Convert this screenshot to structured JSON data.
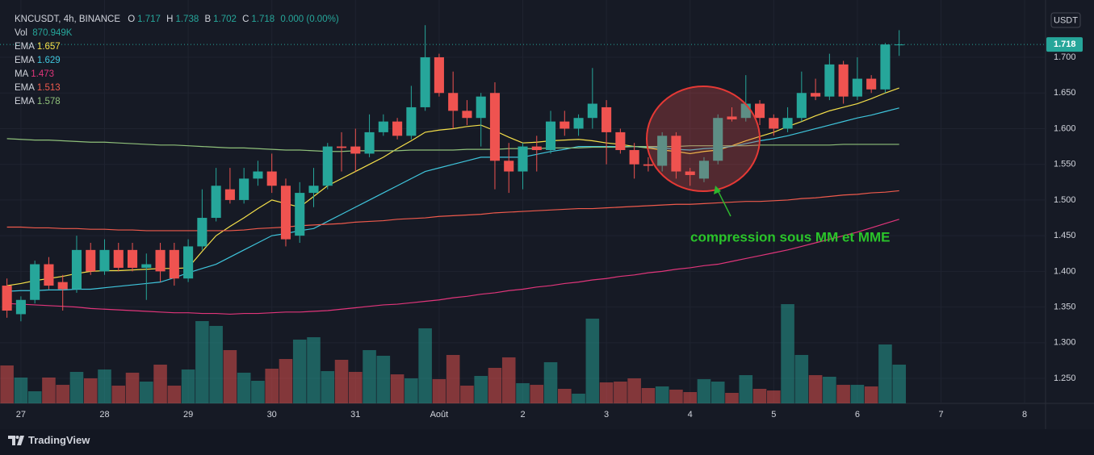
{
  "chart_data": {
    "type": "candlestick",
    "title": "KNCUSDT, 4h, BINANCE",
    "ohlc_keys": [
      "O",
      "H",
      "B",
      "C"
    ],
    "change": "0.000 (0.00%)",
    "volume_name": "Vol",
    "volume_text": "870.949K",
    "currency": "USDT",
    "annotation": "compression sous MM et MME",
    "up_color": "#26a69a",
    "down_color": "#ef5350",
    "grid": true,
    "ylim": [
      1.215,
      1.769
    ],
    "yticks": [
      {
        "value": 1.25,
        "label": "1.250"
      },
      {
        "value": 1.3,
        "label": "1.300"
      },
      {
        "value": 1.35,
        "label": "1.350"
      },
      {
        "value": 1.4,
        "label": "1.400"
      },
      {
        "value": 1.45,
        "label": "1.450"
      },
      {
        "value": 1.5,
        "label": "1.500"
      },
      {
        "value": 1.55,
        "label": "1.550"
      },
      {
        "value": 1.6,
        "label": "1.600"
      },
      {
        "value": 1.65,
        "label": "1.650"
      },
      {
        "value": 1.7,
        "label": "1.700"
      }
    ],
    "categories": [
      null,
      "27",
      null,
      null,
      null,
      null,
      null,
      "28",
      null,
      null,
      null,
      null,
      null,
      "29",
      null,
      null,
      null,
      null,
      null,
      "30",
      null,
      null,
      null,
      null,
      null,
      "31",
      null,
      null,
      null,
      null,
      null,
      "Août",
      null,
      null,
      null,
      null,
      null,
      "2",
      null,
      null,
      null,
      null,
      null,
      "3",
      null,
      null,
      null,
      null,
      null,
      "4",
      null,
      null,
      null,
      null,
      null,
      "5",
      null,
      null,
      null,
      null,
      null,
      "6",
      null,
      null,
      null,
      null,
      null,
      "7",
      null,
      null,
      null,
      null,
      null,
      "8",
      null
    ],
    "open": [
      1.38,
      1.34,
      1.36,
      1.41,
      1.385,
      1.375,
      1.43,
      1.4,
      1.43,
      1.43,
      1.405,
      1.43,
      1.43,
      1.39,
      1.435,
      1.475,
      1.515,
      1.5,
      1.53,
      1.54,
      1.52,
      1.45,
      1.51,
      1.52,
      1.575,
      1.575,
      1.565,
      1.595,
      1.61,
      1.59,
      1.63,
      1.7,
      1.65,
      1.625,
      1.615,
      1.65,
      1.555,
      1.54,
      1.575,
      1.57,
      1.61,
      1.6,
      1.615,
      1.63,
      1.595,
      1.57,
      1.55,
      1.548,
      1.59,
      1.54,
      1.53,
      1.555,
      1.617,
      1.615,
      1.635,
      1.615,
      1.6,
      1.615,
      1.65,
      1.645,
      1.69,
      1.645,
      1.67,
      1.655,
      1.717,
      null,
      null,
      null,
      null,
      null,
      null,
      null,
      null,
      null,
      null
    ],
    "high": [
      1.39,
      1.365,
      1.415,
      1.42,
      1.395,
      1.45,
      1.44,
      1.445,
      1.44,
      1.44,
      1.425,
      1.44,
      1.44,
      1.445,
      1.515,
      1.545,
      1.545,
      1.545,
      1.555,
      1.565,
      1.53,
      1.525,
      1.545,
      1.58,
      1.595,
      1.6,
      1.62,
      1.62,
      1.615,
      1.66,
      1.745,
      1.705,
      1.68,
      1.64,
      1.65,
      1.665,
      1.58,
      1.58,
      1.59,
      1.625,
      1.625,
      1.62,
      1.685,
      1.64,
      1.6,
      1.58,
      1.56,
      1.595,
      1.595,
      1.545,
      1.56,
      1.62,
      1.63,
      1.675,
      1.64,
      1.62,
      1.63,
      1.68,
      1.67,
      1.705,
      1.695,
      1.7,
      1.675,
      1.72,
      1.738,
      null,
      null,
      null,
      null,
      null,
      null,
      null,
      null,
      null,
      null
    ],
    "low": [
      1.335,
      1.33,
      1.355,
      1.375,
      1.345,
      1.37,
      1.395,
      1.395,
      1.4,
      1.4,
      1.36,
      1.385,
      1.38,
      1.385,
      1.43,
      1.47,
      1.495,
      1.495,
      1.52,
      1.51,
      1.435,
      1.44,
      1.49,
      1.515,
      1.54,
      1.54,
      1.56,
      1.59,
      1.585,
      1.585,
      1.625,
      1.645,
      1.6,
      1.605,
      1.575,
      1.515,
      1.51,
      1.515,
      1.54,
      1.565,
      1.59,
      1.59,
      1.6,
      1.55,
      1.565,
      1.53,
      1.54,
      1.54,
      1.53,
      1.52,
      1.525,
      1.55,
      1.61,
      1.61,
      1.605,
      1.59,
      1.595,
      1.61,
      1.64,
      1.64,
      1.635,
      1.64,
      1.65,
      1.65,
      1.702,
      null,
      null,
      null,
      null,
      null,
      null,
      null,
      null,
      null,
      null
    ],
    "close": [
      1.345,
      1.36,
      1.41,
      1.38,
      1.375,
      1.43,
      1.4,
      1.43,
      1.405,
      1.405,
      1.41,
      1.4,
      1.39,
      1.435,
      1.475,
      1.52,
      1.5,
      1.53,
      1.54,
      1.52,
      1.445,
      1.51,
      1.52,
      1.575,
      1.573,
      1.565,
      1.595,
      1.61,
      1.59,
      1.63,
      1.7,
      1.65,
      1.625,
      1.615,
      1.645,
      1.555,
      1.54,
      1.575,
      1.57,
      1.61,
      1.6,
      1.615,
      1.635,
      1.595,
      1.57,
      1.55,
      1.548,
      1.59,
      1.54,
      1.535,
      1.555,
      1.615,
      1.613,
      1.635,
      1.615,
      1.6,
      1.615,
      1.65,
      1.645,
      1.69,
      1.645,
      1.67,
      1.655,
      1.718,
      1.718,
      null,
      null,
      null,
      null,
      null,
      null,
      null,
      null,
      null,
      null
    ],
    "volume": [
      853,
      581,
      272,
      581,
      417,
      708,
      563,
      762,
      399,
      690,
      490,
      871,
      399,
      762,
      1851,
      1742,
      1198,
      690,
      508,
      780,
      998,
      1434,
      1488,
      726,
      980,
      708,
      1198,
      1071,
      653,
      563,
      1688,
      545,
      1089,
      399,
      617,
      799,
      1035,
      454,
      417,
      926,
      327,
      218,
      1906,
      472,
      490,
      563,
      345,
      381,
      309,
      254,
      545,
      490,
      236,
      635,
      327,
      290,
      2232,
      1089,
      635,
      599,
      417,
      417,
      381,
      1325,
      870.949,
      null,
      null,
      null,
      null,
      null,
      null,
      null,
      null,
      null,
      null
    ],
    "lines": [
      {
        "name": "EMA",
        "color": "#f5e04a",
        "values": [
          1.38,
          1.383,
          1.387,
          1.39,
          1.393,
          1.397,
          1.4,
          1.401,
          1.401,
          1.402,
          1.403,
          1.404,
          1.404,
          1.405,
          1.428,
          1.45,
          1.463,
          1.475,
          1.488,
          1.5,
          1.495,
          1.49,
          1.505,
          1.52,
          1.53,
          1.54,
          1.55,
          1.56,
          1.572,
          1.583,
          1.595,
          1.598,
          1.6,
          1.603,
          1.605,
          1.597,
          1.588,
          1.58,
          1.581,
          1.583,
          1.584,
          1.585,
          1.583,
          1.58,
          1.578,
          1.575,
          1.573,
          1.57,
          1.568,
          1.565,
          1.568,
          1.57,
          1.576,
          1.583,
          1.589,
          1.595,
          1.603,
          1.61,
          1.618,
          1.625,
          1.63,
          1.635,
          1.642,
          1.65,
          1.657,
          null,
          null,
          null,
          null,
          null,
          null,
          null,
          null,
          null,
          null
        ]
      },
      {
        "name": "EMA",
        "color": "#3fc5dc",
        "values": [
          1.372,
          1.373,
          1.373,
          1.374,
          1.374,
          1.375,
          1.375,
          1.377,
          1.379,
          1.381,
          1.383,
          1.385,
          1.391,
          1.398,
          1.404,
          1.41,
          1.42,
          1.43,
          1.44,
          1.45,
          1.453,
          1.457,
          1.46,
          1.47,
          1.48,
          1.49,
          1.5,
          1.51,
          1.52,
          1.53,
          1.54,
          1.545,
          1.55,
          1.555,
          1.56,
          1.56,
          1.56,
          1.56,
          1.564,
          1.568,
          1.571,
          1.575,
          1.575,
          1.575,
          1.575,
          1.575,
          1.574,
          1.573,
          1.571,
          1.57,
          1.572,
          1.573,
          1.575,
          1.579,
          1.583,
          1.586,
          1.59,
          1.595,
          1.6,
          1.605,
          1.61,
          1.615,
          1.619,
          1.624,
          1.629,
          null,
          null,
          null,
          null,
          null,
          null,
          null,
          null,
          null,
          null
        ]
      },
      {
        "name": "MA",
        "color": "#e0357a",
        "values": [
          1.355,
          1.354,
          1.353,
          1.352,
          1.351,
          1.35,
          1.348,
          1.347,
          1.346,
          1.345,
          1.344,
          1.343,
          1.342,
          1.342,
          1.341,
          1.341,
          1.34,
          1.341,
          1.341,
          1.342,
          1.343,
          1.343,
          1.344,
          1.345,
          1.347,
          1.349,
          1.351,
          1.353,
          1.354,
          1.356,
          1.358,
          1.36,
          1.363,
          1.365,
          1.368,
          1.37,
          1.373,
          1.375,
          1.378,
          1.38,
          1.383,
          1.385,
          1.388,
          1.39,
          1.393,
          1.395,
          1.398,
          1.4,
          1.403,
          1.405,
          1.408,
          1.41,
          1.414,
          1.418,
          1.422,
          1.426,
          1.43,
          1.435,
          1.44,
          1.445,
          1.45,
          1.455,
          1.461,
          1.467,
          1.473,
          null,
          null,
          null,
          null,
          null,
          null,
          null,
          null,
          null,
          null
        ]
      },
      {
        "name": "EMA",
        "color": "#ef5a4c",
        "values": [
          1.462,
          1.462,
          1.461,
          1.461,
          1.46,
          1.46,
          1.459,
          1.459,
          1.458,
          1.458,
          1.457,
          1.457,
          1.457,
          1.457,
          1.457,
          1.457,
          1.457,
          1.458,
          1.46,
          1.461,
          1.462,
          1.464,
          1.465,
          1.466,
          1.467,
          1.469,
          1.47,
          1.471,
          1.473,
          1.474,
          1.475,
          1.477,
          1.478,
          1.479,
          1.48,
          1.482,
          1.483,
          1.484,
          1.485,
          1.486,
          1.487,
          1.488,
          1.488,
          1.489,
          1.49,
          1.491,
          1.492,
          1.493,
          1.494,
          1.494,
          1.495,
          1.496,
          1.497,
          1.498,
          1.498,
          1.499,
          1.5,
          1.502,
          1.503,
          1.505,
          1.507,
          1.508,
          1.51,
          1.511,
          1.513,
          null,
          null,
          null,
          null,
          null,
          null,
          null,
          null,
          null,
          null
        ]
      },
      {
        "name": "EMA",
        "color": "#8fc07a",
        "values": [
          1.586,
          1.585,
          1.584,
          1.584,
          1.583,
          1.582,
          1.581,
          1.581,
          1.58,
          1.579,
          1.578,
          1.577,
          1.577,
          1.576,
          1.575,
          1.574,
          1.573,
          1.573,
          1.572,
          1.571,
          1.57,
          1.57,
          1.569,
          1.568,
          1.568,
          1.569,
          1.569,
          1.569,
          1.569,
          1.57,
          1.57,
          1.57,
          1.57,
          1.571,
          1.571,
          1.571,
          1.572,
          1.572,
          1.572,
          1.573,
          1.573,
          1.573,
          1.574,
          1.574,
          1.574,
          1.575,
          1.575,
          1.575,
          1.575,
          1.576,
          1.576,
          1.576,
          1.576,
          1.576,
          1.577,
          1.577,
          1.577,
          1.577,
          1.577,
          1.577,
          1.578,
          1.578,
          1.578,
          1.578,
          1.578,
          null,
          null,
          null,
          null,
          null,
          null,
          null,
          null,
          null,
          null
        ]
      }
    ]
  },
  "branding": "TradingView"
}
